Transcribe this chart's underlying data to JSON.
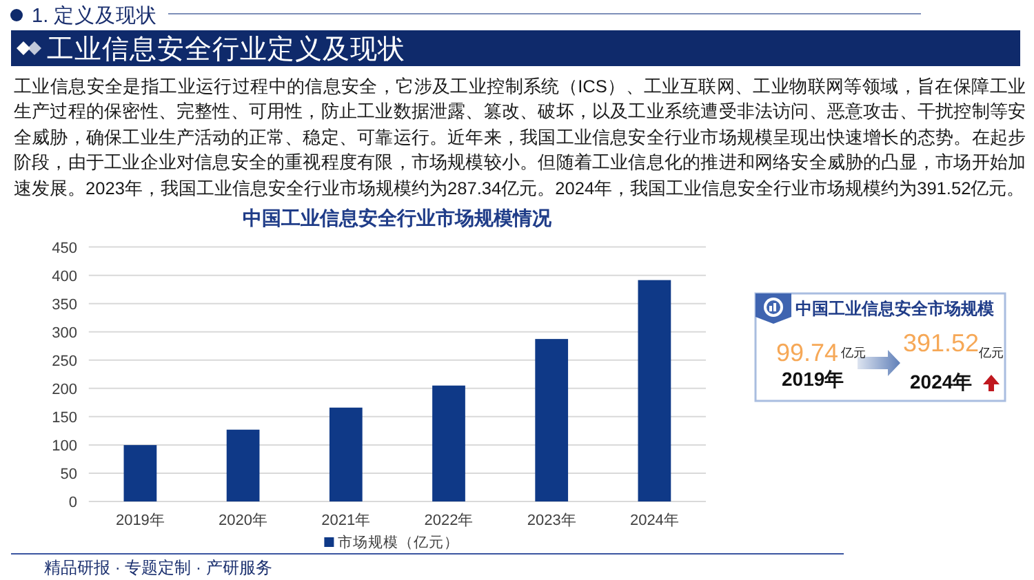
{
  "chart_data": [
    {
      "type": "bar",
      "title": "中国工业信息安全行业市场规模情况",
      "categories": [
        "2019年",
        "2020年",
        "2021年",
        "2022年",
        "2023年",
        "2024年"
      ],
      "series": [
        {
          "name": "市场规模（亿元）",
          "color": "#0f3987",
          "values": [
            99.74,
            127,
            166,
            205,
            287.34,
            391.52
          ]
        }
      ],
      "ylim": [
        0,
        450
      ],
      "yticks": [
        0,
        50,
        100,
        150,
        200,
        250,
        300,
        350,
        400,
        450
      ],
      "grid": "y",
      "legend": "bottom",
      "annotations": [
        "1. 定义及现状",
        "工业信息安全行业定义及现状",
        "工业信息安全是指工业运行过程中的信息安全，它涉及工业控制系统（ICS）、工业互联网、工业物联网等领域，旨在保障工业生产过程的保密性、完整性、可用性，防止工业数据泄露、篡改、破坏，以及工业系统遭受非法访问、恶意攻击、干扰控制等安全威胁，确保工业生产活动的正常、稳定、可靠运行。近年来，我国工业信息安全行业市场规模呈现出快速增长的态势。在起步阶段，由于工业企业对信息安全的重视程度有限，市场规模较小。但随着工业信息化的推进和网络安全威胁的凸显，市场开始加速发展。2023年，我国工业信息安全行业市场规模约为287.34亿元。2024年，我国工业信息安全行业市场规模约为391.52亿元。",
        "精品研报 · 专题定制 · 产研服务"
      ]
    },
    {
      "type": "other",
      "title": "中国工业信息安全市场规模",
      "annotations": [
        "99.74",
        "亿元",
        "2019年",
        "391.52",
        "亿元",
        "2024年"
      ]
    }
  ]
}
